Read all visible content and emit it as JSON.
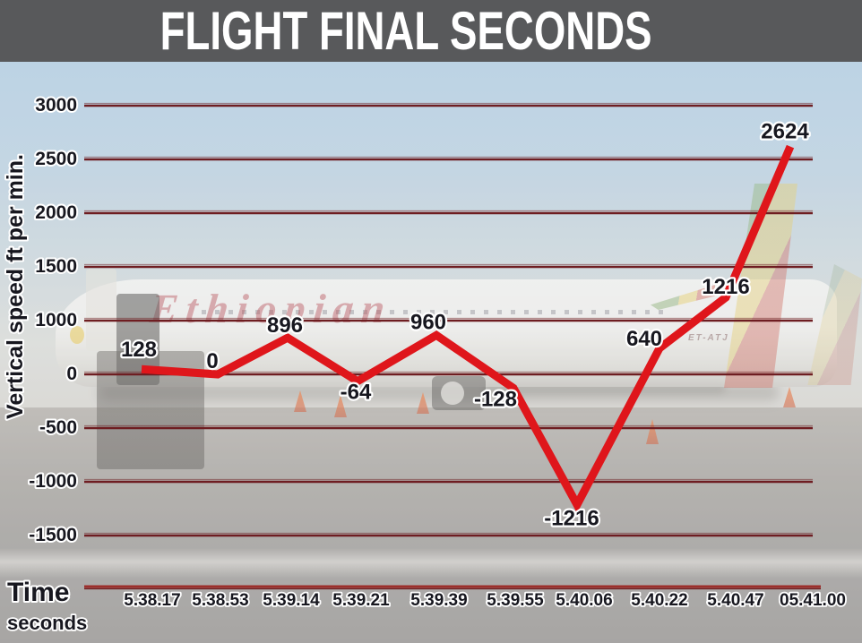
{
  "title": "FLIGHT FINAL SECONDS",
  "background": {
    "airline_script": "Ethiopian",
    "registration": "ET-ATJ"
  },
  "colors": {
    "line": "#df161b",
    "grid": "#6e1d21",
    "axis_line": "#9c2f2c",
    "label": "#17171f",
    "label_halo": "#ffffff",
    "title_bar": "#58595b",
    "title_text": "#ffffff"
  },
  "chart_data": {
    "type": "line",
    "title": "FLIGHT FINAL SECONDS",
    "xlabel_main": "Time",
    "xlabel_sub": "seconds",
    "ylabel": "Vertical speed ft per min.",
    "x": [
      "5.38.17",
      "5.38.53",
      "5.39.14",
      "5.39.21",
      "5.39.39",
      "5.39.55",
      "5.40.06",
      "5.40.22",
      "5.40.47",
      "05.41.00"
    ],
    "values": [
      128,
      0,
      896,
      -64,
      960,
      -128,
      -1216,
      640,
      1216,
      2624
    ],
    "y_ticks": [
      "3000",
      "2500",
      "2000",
      "1500",
      "1000",
      "0",
      "-500",
      "-1000",
      "-1500"
    ],
    "ylim": [
      -1500,
      3000
    ],
    "grid": true,
    "legend": false,
    "line_width": 9
  }
}
